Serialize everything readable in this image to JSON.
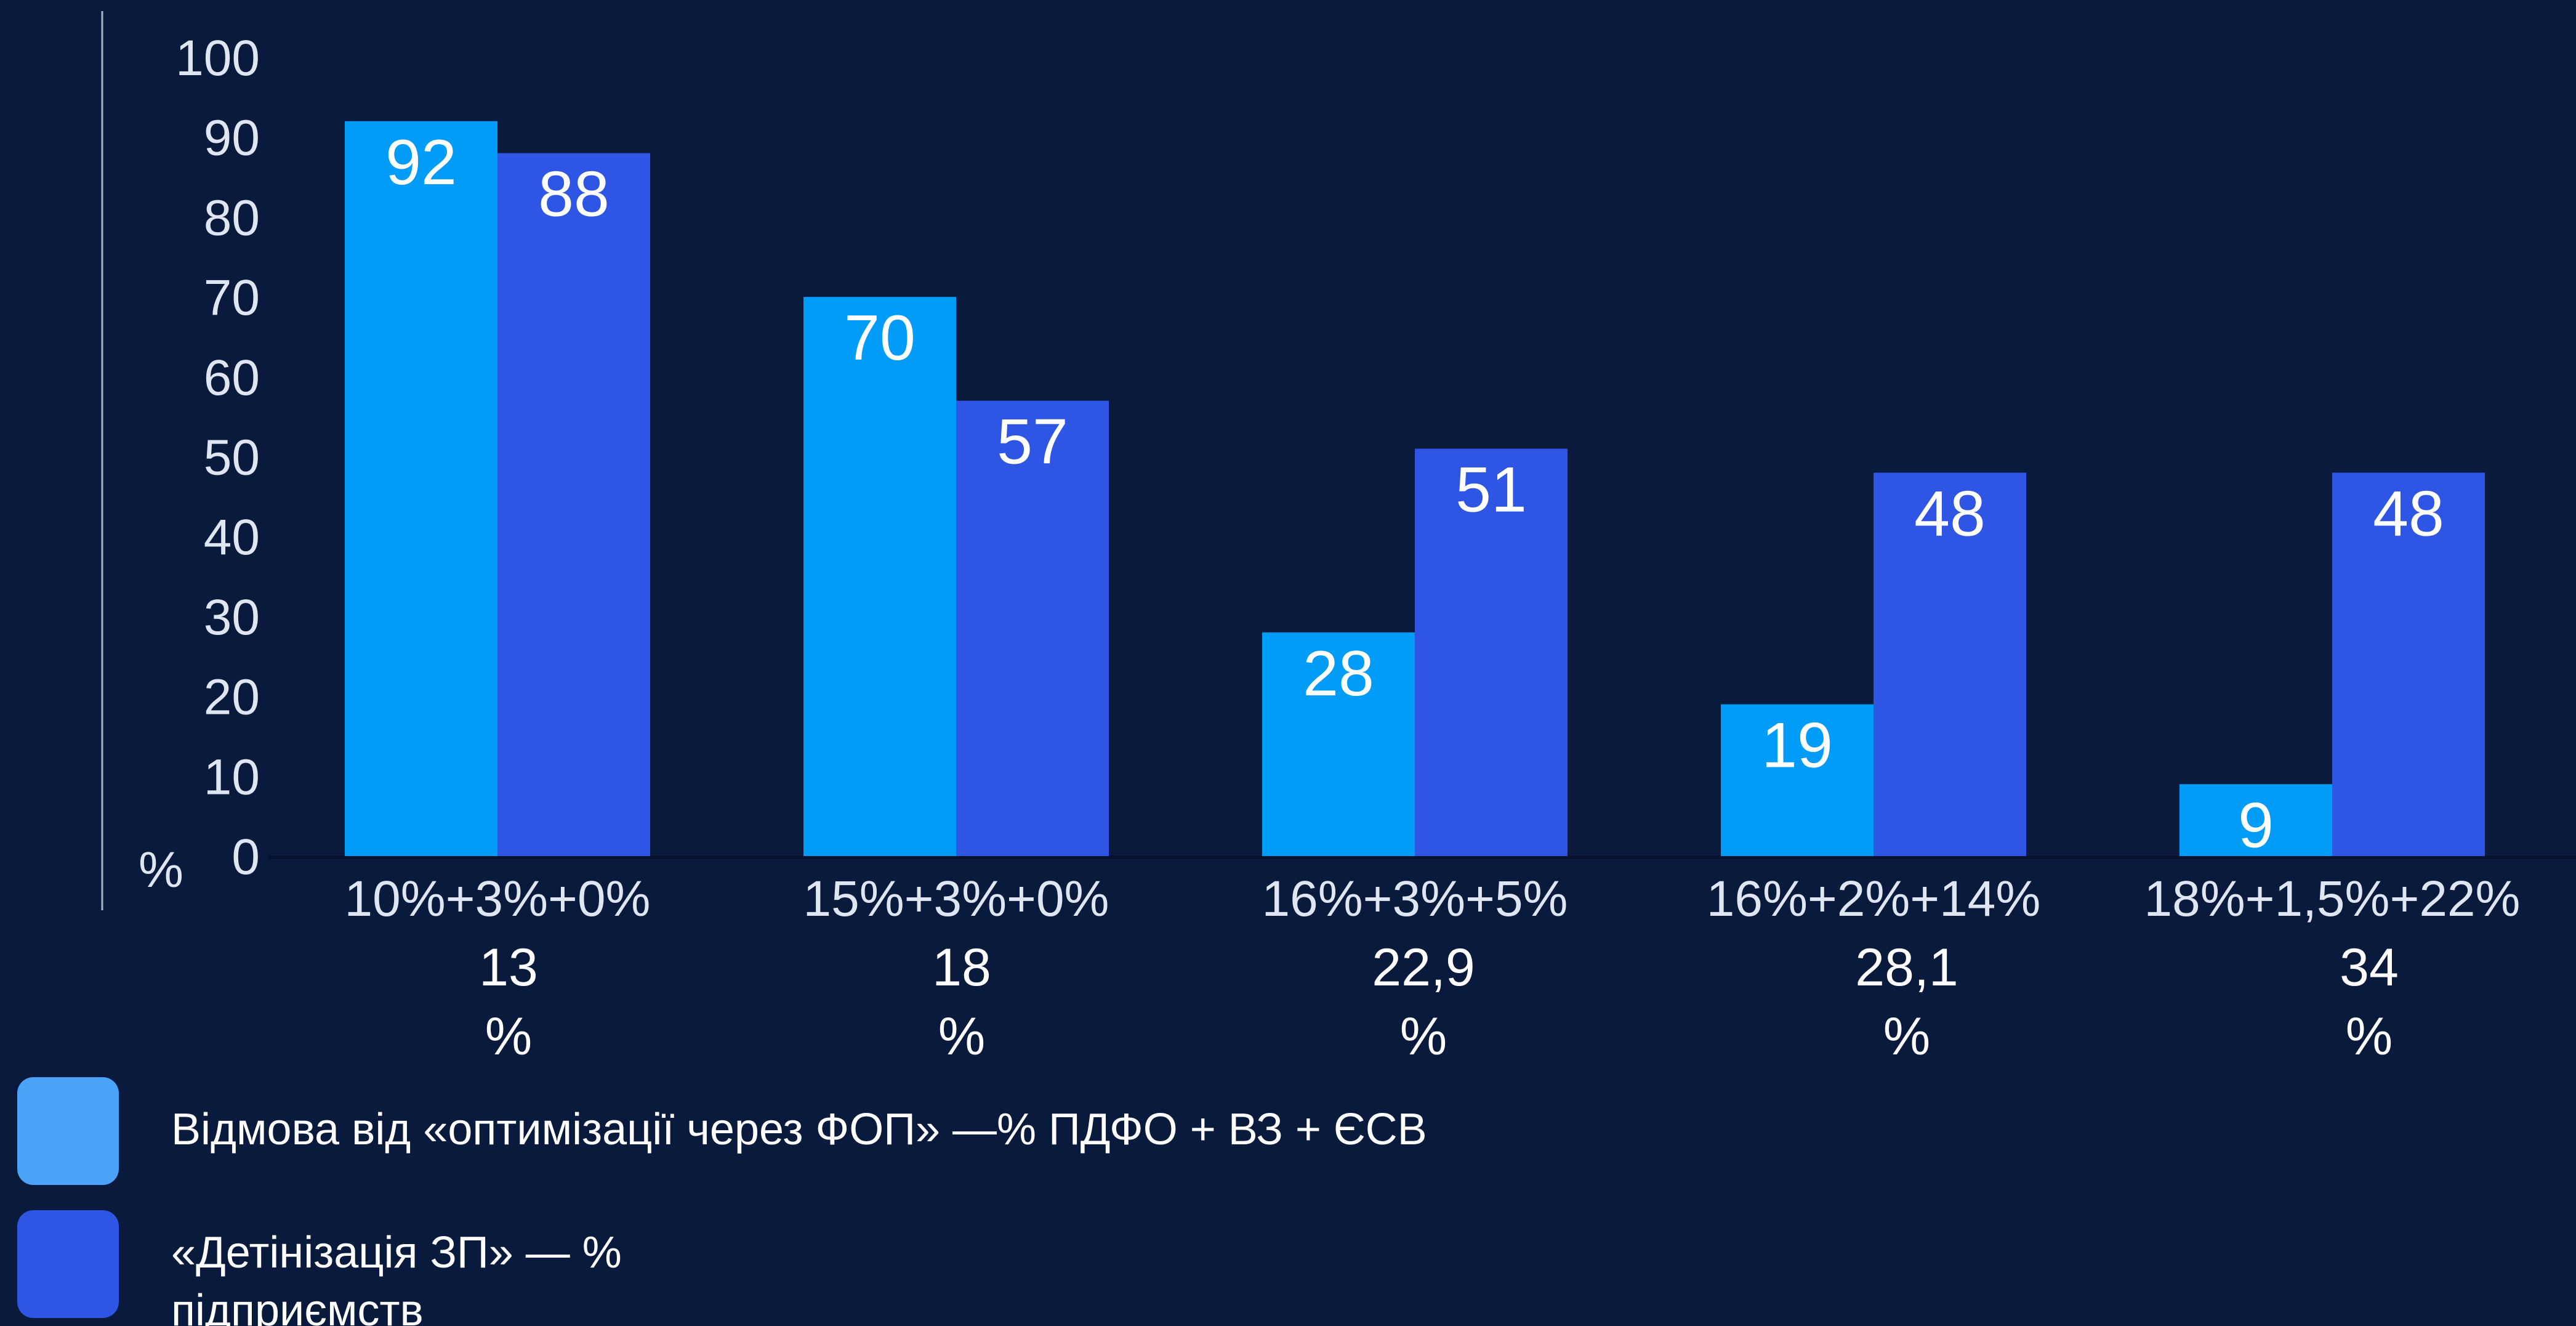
{
  "chart_data": {
    "type": "bar",
    "categories": [
      "10%+3%+0%",
      "15%+3%+0%",
      "16%+3%+5%",
      "16%+2%+14%",
      "18%+1,5%+22%"
    ],
    "category_sublabels": [
      [
        "13",
        "%"
      ],
      [
        "18",
        "%"
      ],
      [
        "22,9",
        "%"
      ],
      [
        "28,1",
        "%"
      ],
      [
        "34",
        "%"
      ]
    ],
    "series": [
      {
        "name": "Відмова від «оптимізації через ФОП» —%  ПДФО + ВЗ + ЄСВ",
        "values": [
          92,
          70,
          28,
          19,
          9
        ],
        "color": "#009cf8"
      },
      {
        "name": "«Детінізація ЗП» — % підприємств",
        "values": [
          88,
          57,
          51,
          48,
          48
        ],
        "color": "#2f55e4"
      }
    ],
    "data_labels": [
      [
        "92",
        "70",
        "28",
        "19",
        "9"
      ],
      [
        "88",
        "57",
        "51",
        "48",
        "48"
      ]
    ],
    "y_ticks": [
      "0",
      "10",
      "20",
      "30",
      "40",
      "50",
      "60",
      "70",
      "80",
      "90",
      "100"
    ],
    "ylabel": "%",
    "ylim": [
      0,
      100
    ],
    "grid": false,
    "legend_position": "bottom-left",
    "legend_swatch_colors": [
      "#4aa3f8",
      "#2f55e4"
    ]
  }
}
